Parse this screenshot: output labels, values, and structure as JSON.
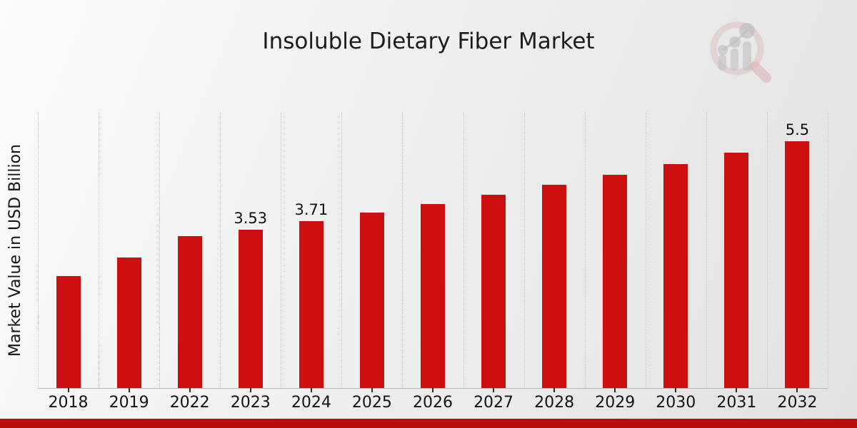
{
  "chart_data": {
    "type": "bar",
    "title": "Insoluble Dietary Fiber Market",
    "xlabel": "",
    "ylabel": "Market Value in USD Billion",
    "categories": [
      "2018",
      "2019",
      "2022",
      "2023",
      "2024",
      "2025",
      "2026",
      "2027",
      "2028",
      "2029",
      "2030",
      "2031",
      "2032"
    ],
    "values": [
      2.5,
      2.91,
      3.38,
      3.53,
      3.71,
      3.9,
      4.1,
      4.31,
      4.52,
      4.75,
      4.99,
      5.24,
      5.5
    ],
    "bar_labels": [
      "",
      "",
      "",
      "3.53",
      "3.71",
      "",
      "",
      "",
      "",
      "",
      "",
      "",
      "5.5"
    ],
    "ylim": [
      0,
      6.13
    ],
    "grid": "vertical dotted lines at category boundaries",
    "legend_position": "none",
    "bar_color": "#cc1010",
    "text_color": "#141414"
  },
  "branding": {
    "watermark_icon": "magnifier-bar-chart-logo",
    "footer_bar_color": "#ba0d0d",
    "watermark_ring_color": "#d99494",
    "watermark_bars_color": "#a8a8ad"
  }
}
